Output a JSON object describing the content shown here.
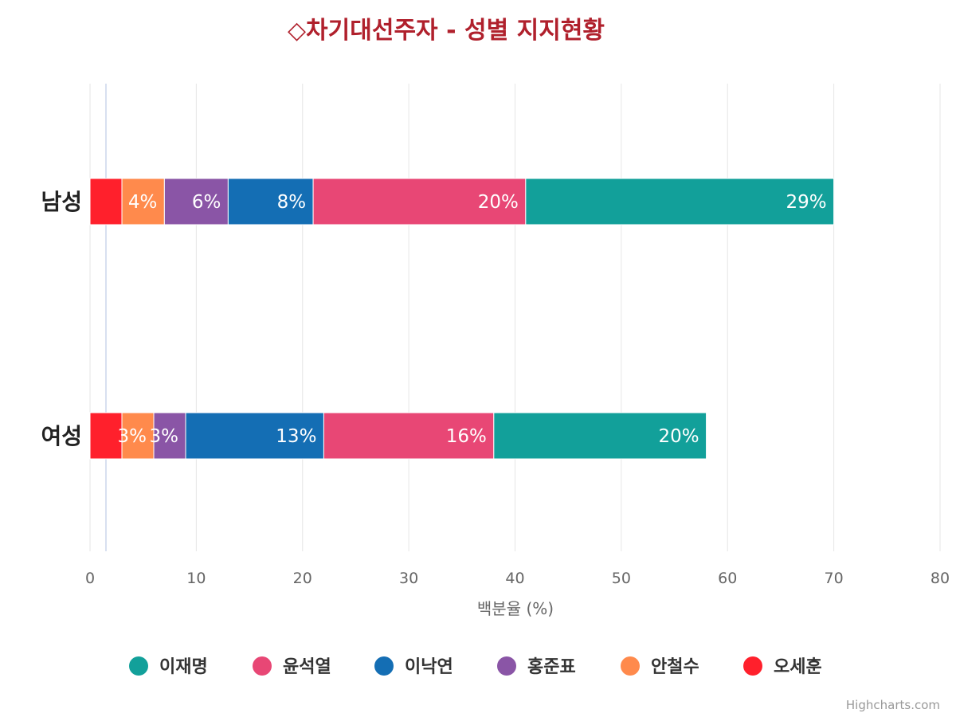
{
  "chart_data": {
    "type": "bar",
    "stacked": true,
    "orientation": "horizontal",
    "title": "◇차기대선주자 - 성별 지지현황",
    "title_color": "#b0202c",
    "categories": [
      "남성",
      "여성"
    ],
    "xlabel": "백분율 (%)",
    "xlim": [
      0,
      80
    ],
    "ticks": [
      0,
      10,
      20,
      30,
      40,
      50,
      60,
      70,
      80
    ],
    "tick_labels": [
      "0",
      "10",
      "20",
      "30",
      "40",
      "50",
      "60",
      "70",
      "80"
    ],
    "grid": true,
    "legend": "bottom-center",
    "series": [
      {
        "name": "이재명",
        "color": "#12a09a",
        "values": [
          29,
          20
        ],
        "labels": [
          "29%",
          "20%"
        ]
      },
      {
        "name": "윤석열",
        "color": "#e84775",
        "values": [
          20,
          16
        ],
        "labels": [
          "20%",
          "16%"
        ]
      },
      {
        "name": "이낙연",
        "color": "#146eb4",
        "values": [
          8,
          13
        ],
        "labels": [
          "8%",
          "13%"
        ]
      },
      {
        "name": "홍준표",
        "color": "#8a55a6",
        "values": [
          6,
          3
        ],
        "labels": [
          "6%",
          "3%"
        ]
      },
      {
        "name": "안철수",
        "color": "#ff8a4c",
        "values": [
          4,
          3
        ],
        "labels": [
          "4%",
          "3%"
        ]
      },
      {
        "name": "오세훈",
        "color": "#ff202c",
        "values": [
          3,
          3
        ],
        "labels": [
          "",
          ""
        ]
      }
    ]
  },
  "credit": "Highcharts.com"
}
